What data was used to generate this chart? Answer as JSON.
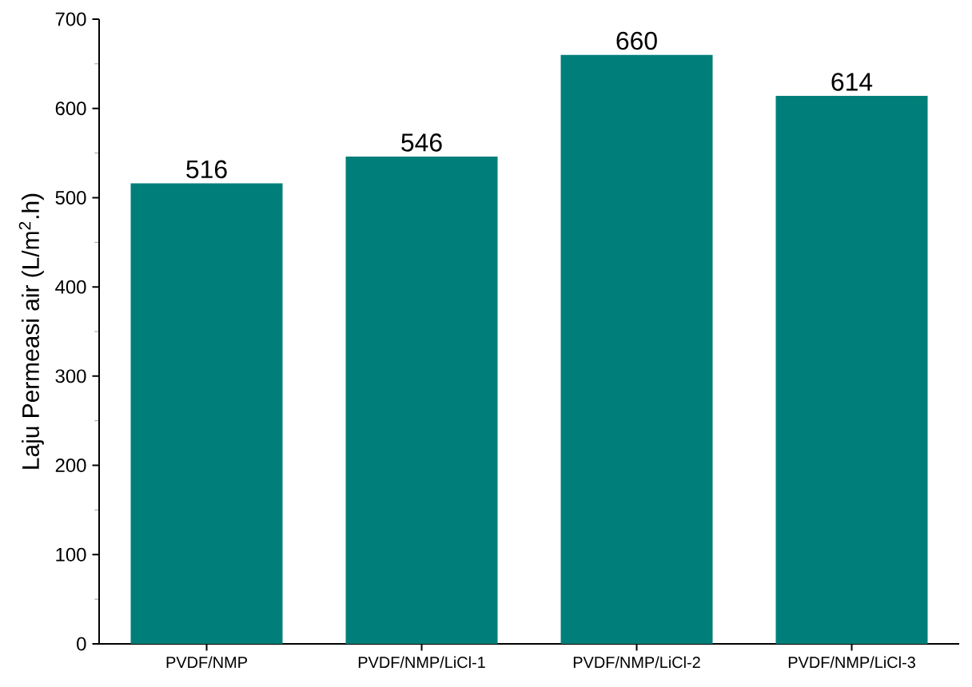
{
  "chart_data": {
    "type": "bar",
    "categories": [
      "PVDF/NMP",
      "PVDF/NMP/LiCl-1",
      "PVDF/NMP/LiCl-2",
      "PVDF/NMP/LiCl-3"
    ],
    "values": [
      516,
      546,
      660,
      614
    ],
    "color": "#007f7a",
    "ylabel": "Laju Permeasi air (L/m$^{2}$.h)",
    "ylim": [
      0,
      700
    ],
    "yticks": [
      0,
      100,
      200,
      300,
      400,
      500,
      600,
      700
    ],
    "data_labels": true
  }
}
